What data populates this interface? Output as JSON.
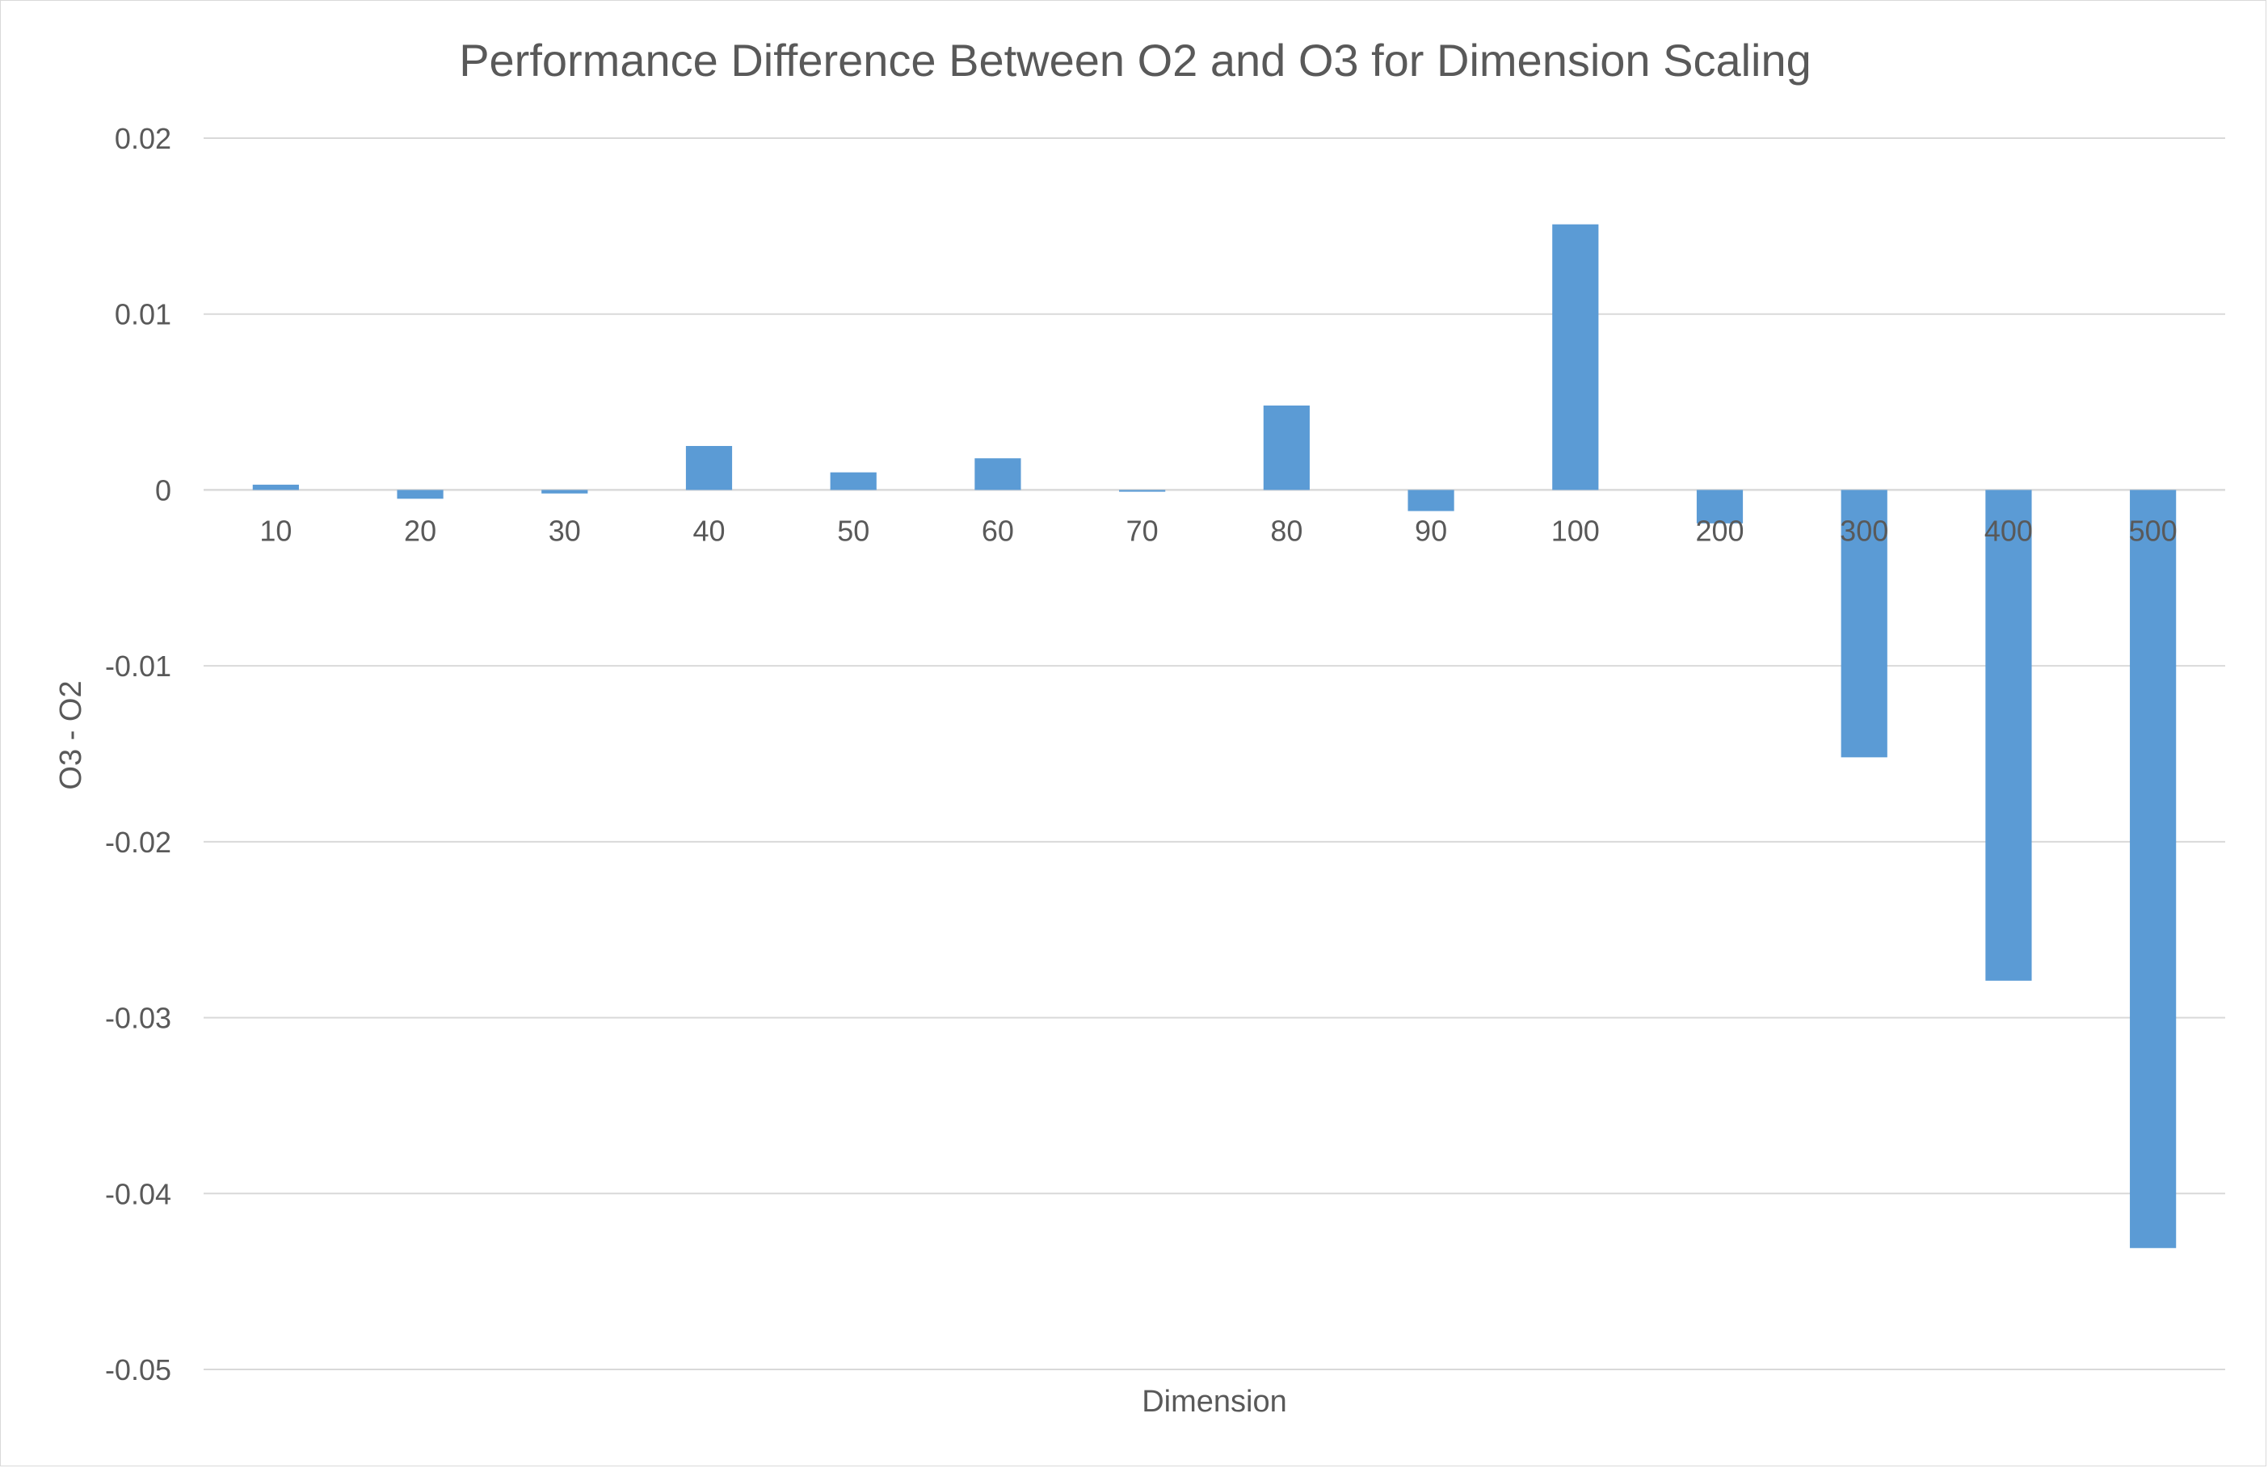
{
  "chart_data": {
    "type": "bar",
    "title": "Performance Difference Between O2 and O3 for Dimension Scaling",
    "xlabel": "Dimension",
    "ylabel": "O3 - O2",
    "categories": [
      "10",
      "20",
      "30",
      "40",
      "50",
      "60",
      "70",
      "80",
      "90",
      "100",
      "200",
      "300",
      "400",
      "500"
    ],
    "values": [
      0.0003,
      -0.0005,
      -0.0002,
      0.0025,
      0.001,
      0.0018,
      -0.0001,
      0.0048,
      -0.0012,
      0.0151,
      -0.0019,
      -0.0152,
      -0.0279,
      -0.0431
    ],
    "ylim": [
      -0.05,
      0.02
    ],
    "yticks": [
      0.02,
      0.01,
      0,
      -0.01,
      -0.02,
      -0.03,
      -0.04,
      -0.05
    ],
    "ytick_labels": [
      "0.02",
      "0.01",
      "0",
      "-0.01",
      "-0.02",
      "-0.03",
      "-0.04",
      "-0.05"
    ],
    "grid": true,
    "legend": false,
    "bar_color": "#5b9bd5",
    "grid_color": "#d9d9d9",
    "text_color": "#595959"
  }
}
